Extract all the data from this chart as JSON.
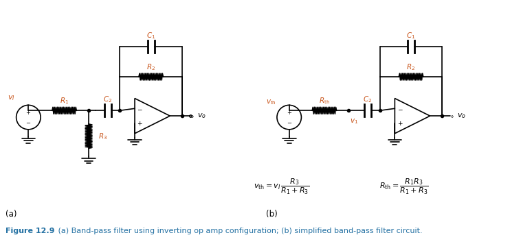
{
  "fig_width": 7.58,
  "fig_height": 3.56,
  "dpi": 100,
  "bg_color": "#ffffff",
  "circuit_color": "#000000",
  "label_color_red": "#c8541a",
  "caption_color": "#2471a3",
  "caption_bold": "Figure 12.9",
  "caption_normal": " (a) Band-pass filter using inverting op amp configuration; (b) simplified band-pass filter circuit.",
  "label_a": "(a)",
  "label_b": "(b)",
  "font_size_labels": 7.5,
  "font_size_caption": 8.0,
  "font_size_eq": 8.5
}
